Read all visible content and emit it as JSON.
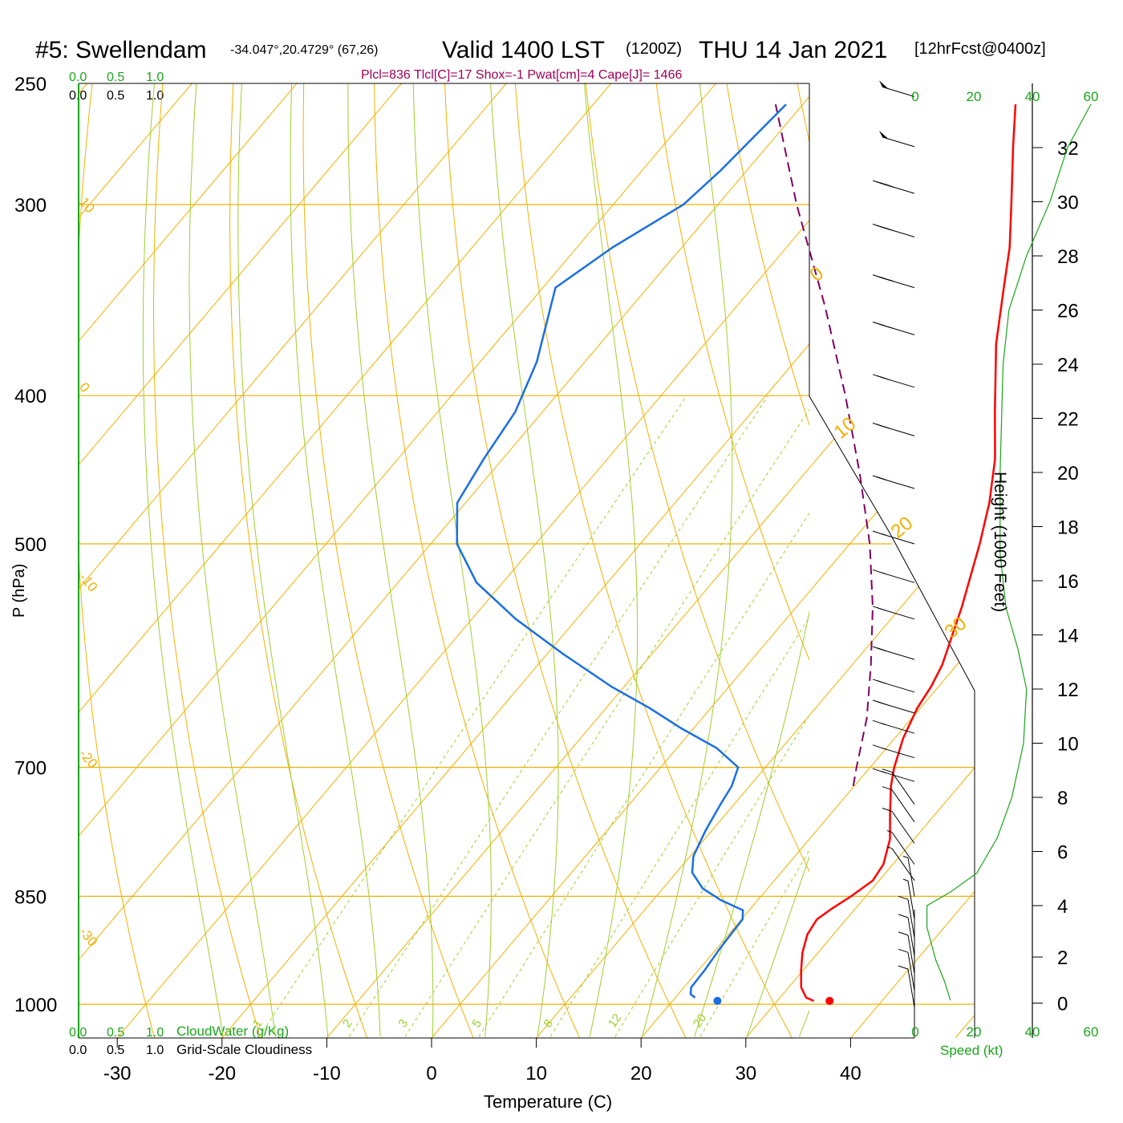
{
  "header": {
    "station": "#5: Swellendam",
    "coords": "-34.047°,20.4729° (67,26)",
    "valid": "Valid 1400 LST",
    "zulu": "(1200Z)",
    "date": "THU 14 Jan 2021",
    "forecast": "[12hrFcst@0400z]"
  },
  "indices_text": "Plcl=836 Tlcl[C]=17 Shox=-1 Pwat[cm]=4 Cape[J]= 1466",
  "colors": {
    "isotherm": "#f0b000",
    "adiabat": "#9dcf2d",
    "mixing": "#9dcf2d",
    "temperature": "#ff0000",
    "dewpoint": "#1a6fe0",
    "parcel": "#800060",
    "green_text": "#1aa51a",
    "indices": "#a0005a"
  },
  "chart_data": {
    "type": "skew-t",
    "title": "#5: Swellendam  Valid 1400 LST (1200Z) THU 14 Jan 2021",
    "xlabel": "Temperature (C)",
    "ylabel": "P (hPa)",
    "right_axis_label": "Height (1000 Feet)",
    "x_ticks": [
      -30,
      -20,
      -10,
      0,
      10,
      20,
      30,
      40
    ],
    "pressure_levels": [
      250,
      300,
      400,
      500,
      700,
      850,
      1000
    ],
    "pressure_range": [
      250,
      1050
    ],
    "temperature_range_at_bottom": [
      -34,
      46
    ],
    "isotherm_labels": [
      "-30",
      "-20",
      "-10",
      "0",
      "10",
      "20",
      "30"
    ],
    "isotherm_top_labels": [
      "10",
      "0"
    ],
    "isotherm_right_labels": [
      "0",
      "10",
      "20",
      "30"
    ],
    "mixing_ratio_labels": [
      "1",
      "2",
      "3",
      "5",
      "8",
      "12",
      "20"
    ],
    "cloud_scale": {
      "ticks": [
        "0.0",
        "0.5",
        "1.0"
      ],
      "cloudwater_label": "CloudWater (g/Kg)",
      "cloudiness_label": "Grid-Scale Cloudiness"
    },
    "temperature_profile": [
      {
        "p": 995,
        "t": 33.5
      },
      {
        "p": 990,
        "t": 32.5
      },
      {
        "p": 975,
        "t": 31.2
      },
      {
        "p": 950,
        "t": 29.8
      },
      {
        "p": 925,
        "t": 28.5
      },
      {
        "p": 900,
        "t": 27.5
      },
      {
        "p": 880,
        "t": 27.2
      },
      {
        "p": 865,
        "t": 27.8
      },
      {
        "p": 850,
        "t": 28.6
      },
      {
        "p": 830,
        "t": 29.4
      },
      {
        "p": 810,
        "t": 29.1
      },
      {
        "p": 780,
        "t": 27.7
      },
      {
        "p": 750,
        "t": 25.6
      },
      {
        "p": 720,
        "t": 23.5
      },
      {
        "p": 700,
        "t": 22.3
      },
      {
        "p": 670,
        "t": 20.8
      },
      {
        "p": 640,
        "t": 19.7
      },
      {
        "p": 620,
        "t": 19.3
      },
      {
        "p": 600,
        "t": 18.6
      },
      {
        "p": 550,
        "t": 15.8
      },
      {
        "p": 500,
        "t": 12.4
      },
      {
        "p": 470,
        "t": 10.0
      },
      {
        "p": 440,
        "t": 7.0
      },
      {
        "p": 410,
        "t": 3.2
      },
      {
        "p": 370,
        "t": -2.2
      },
      {
        "p": 340,
        "t": -6.0
      },
      {
        "p": 320,
        "t": -8.7
      },
      {
        "p": 300,
        "t": -12.0
      },
      {
        "p": 275,
        "t": -16.5
      },
      {
        "p": 258,
        "t": -19.7
      }
    ],
    "dewpoint_profile": [
      {
        "p": 990,
        "t": 21.9
      },
      {
        "p": 985,
        "t": 21.2
      },
      {
        "p": 975,
        "t": 20.7
      },
      {
        "p": 950,
        "t": 20.6
      },
      {
        "p": 920,
        "t": 20.3
      },
      {
        "p": 880,
        "t": 20.1
      },
      {
        "p": 868,
        "t": 19.4
      },
      {
        "p": 855,
        "t": 16.5
      },
      {
        "p": 840,
        "t": 13.8
      },
      {
        "p": 820,
        "t": 11.5
      },
      {
        "p": 800,
        "t": 10.3
      },
      {
        "p": 770,
        "t": 9.4
      },
      {
        "p": 740,
        "t": 8.7
      },
      {
        "p": 720,
        "t": 8.3
      },
      {
        "p": 700,
        "t": 7.4
      },
      {
        "p": 680,
        "t": 3.8
      },
      {
        "p": 660,
        "t": -1.2
      },
      {
        "p": 640,
        "t": -5.9
      },
      {
        "p": 620,
        "t": -11.2
      },
      {
        "p": 590,
        "t": -18.5
      },
      {
        "p": 560,
        "t": -25.8
      },
      {
        "p": 530,
        "t": -32.5
      },
      {
        "p": 500,
        "t": -37.5
      },
      {
        "p": 470,
        "t": -40.8
      },
      {
        "p": 440,
        "t": -41.8
      },
      {
        "p": 410,
        "t": -42.6
      },
      {
        "p": 380,
        "t": -44.6
      },
      {
        "p": 340,
        "t": -48.8
      },
      {
        "p": 320,
        "t": -46.6
      },
      {
        "p": 300,
        "t": -43.3
      },
      {
        "p": 285,
        "t": -42.5
      },
      {
        "p": 258,
        "t": -41.6
      }
    ],
    "parcel_profile": [
      {
        "p": 720,
        "t": 19.9
      },
      {
        "p": 700,
        "t": 18.7
      },
      {
        "p": 650,
        "t": 15.7
      },
      {
        "p": 600,
        "t": 11.8
      },
      {
        "p": 550,
        "t": 7.3
      },
      {
        "p": 500,
        "t": 1.9
      },
      {
        "p": 450,
        "t": -4.7
      },
      {
        "p": 400,
        "t": -12.4
      },
      {
        "p": 350,
        "t": -21.5
      },
      {
        "p": 300,
        "t": -32.5
      },
      {
        "p": 258,
        "t": -42.6
      }
    ],
    "surface_temperature": {
      "p": 995,
      "t": 35.0
    },
    "surface_dewpoint": {
      "p": 995,
      "t": 24.3
    },
    "height_axis": {
      "ticks": [
        "0",
        "2",
        "4",
        "6",
        "8",
        "10",
        "12",
        "14",
        "16",
        "18",
        "20",
        "22",
        "24",
        "26",
        "28",
        "30",
        "32"
      ],
      "values_kft": [
        0.4,
        2.1,
        4.0,
        6.0,
        8.0,
        10.0,
        12.0,
        14.0,
        16.0,
        18.0,
        20.0,
        22.0,
        24.0,
        26.0,
        28.0,
        30.0,
        32.0
      ]
    },
    "wind_speed_axis": {
      "ticks": [
        "0",
        "20",
        "40",
        "60"
      ],
      "label": "Speed (kt)"
    },
    "wind_speed_profile": [
      {
        "h": 0.5,
        "s": 12
      },
      {
        "h": 1.2,
        "s": 10
      },
      {
        "h": 2.0,
        "s": 7
      },
      {
        "h": 3.2,
        "s": 4
      },
      {
        "h": 4.0,
        "s": 4
      },
      {
        "h": 4.5,
        "s": 12
      },
      {
        "h": 5.2,
        "s": 21
      },
      {
        "h": 6.5,
        "s": 28
      },
      {
        "h": 8.0,
        "s": 33
      },
      {
        "h": 10.0,
        "s": 37
      },
      {
        "h": 12.0,
        "s": 38
      },
      {
        "h": 13.5,
        "s": 35
      },
      {
        "h": 15.0,
        "s": 31
      },
      {
        "h": 17.0,
        "s": 29
      },
      {
        "h": 20.0,
        "s": 29
      },
      {
        "h": 24.0,
        "s": 30
      },
      {
        "h": 26.0,
        "s": 32
      },
      {
        "h": 28.0,
        "s": 38
      },
      {
        "h": 30.0,
        "s": 46
      },
      {
        "h": 32.0,
        "s": 52
      },
      {
        "h": 33.6,
        "s": 60
      }
    ],
    "wind_barbs": [
      {
        "p": 255,
        "speed": 50
      },
      {
        "p": 275,
        "speed": 50
      },
      {
        "p": 295,
        "speed": 40
      },
      {
        "p": 315,
        "speed": 40
      },
      {
        "p": 340,
        "speed": 35
      },
      {
        "p": 365,
        "speed": 35
      },
      {
        "p": 395,
        "speed": 30
      },
      {
        "p": 425,
        "speed": 25
      },
      {
        "p": 460,
        "speed": 20
      },
      {
        "p": 500,
        "speed": 15
      },
      {
        "p": 530,
        "speed": 15
      },
      {
        "p": 560,
        "speed": 20
      },
      {
        "p": 595,
        "speed": 20
      },
      {
        "p": 625,
        "speed": 20
      },
      {
        "p": 645,
        "speed": 20
      },
      {
        "p": 665,
        "speed": 15
      },
      {
        "p": 690,
        "speed": 15
      },
      {
        "p": 715,
        "speed": 15
      },
      {
        "p": 740,
        "speed": 10
      },
      {
        "p": 760,
        "speed": 10
      },
      {
        "p": 785,
        "speed": 10
      },
      {
        "p": 810,
        "speed": 5
      },
      {
        "p": 830,
        "speed": 5
      },
      {
        "p": 850,
        "speed": 5
      },
      {
        "p": 880,
        "speed": 5
      },
      {
        "p": 905,
        "speed": 10
      },
      {
        "p": 930,
        "speed": 10
      },
      {
        "p": 955,
        "speed": 10
      },
      {
        "p": 980,
        "speed": 10
      },
      {
        "p": 1005,
        "speed": 10
      }
    ]
  }
}
